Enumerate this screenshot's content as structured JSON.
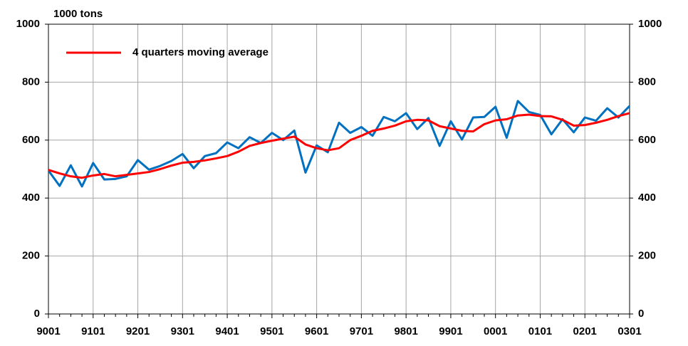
{
  "chart_data": {
    "type": "line",
    "y_axis_label": "1000 tons",
    "categories": [
      "9001",
      null,
      null,
      null,
      "9101",
      null,
      null,
      null,
      "9201",
      null,
      null,
      null,
      "9301",
      null,
      null,
      null,
      "9401",
      null,
      null,
      null,
      "9501",
      null,
      null,
      null,
      "9601",
      null,
      null,
      null,
      "9701",
      null,
      null,
      null,
      "9801",
      null,
      null,
      null,
      "9901",
      null,
      null,
      null,
      "0001",
      null,
      null,
      null,
      "0101",
      null,
      null,
      null,
      "0201",
      null,
      null,
      null,
      "0301"
    ],
    "series": [
      {
        "color": "#0070c0",
        "values": [
          495,
          442,
          513,
          440,
          521,
          464,
          466,
          475,
          531,
          498,
          511,
          528,
          552,
          503,
          545,
          555,
          592,
          572,
          610,
          590,
          625,
          600,
          633,
          488,
          582,
          558,
          660,
          625,
          645,
          615,
          680,
          665,
          693,
          638,
          676,
          580,
          665,
          602,
          678,
          680,
          715,
          608,
          735,
          697,
          687,
          620,
          672,
          627,
          678,
          667,
          710,
          678,
          718
        ]
      },
      {
        "name": "4 quarters moving average",
        "color": "#ff0000",
        "values": [
          497,
          485,
          475,
          470,
          478,
          483,
          475,
          480,
          485,
          490,
          500,
          512,
          522,
          525,
          530,
          537,
          545,
          560,
          580,
          590,
          598,
          605,
          612,
          585,
          572,
          565,
          572,
          600,
          615,
          632,
          640,
          650,
          665,
          670,
          668,
          648,
          640,
          632,
          630,
          655,
          668,
          672,
          685,
          688,
          683,
          682,
          670,
          650,
          652,
          660,
          670,
          683,
          693
        ]
      }
    ],
    "ylim": [
      0,
      1000
    ],
    "yticks": [
      0,
      200,
      400,
      600,
      800,
      1000
    ],
    "y2lim": [
      0,
      1000
    ],
    "y2ticks": [
      0,
      200,
      400,
      600,
      800,
      1000
    ],
    "grid": true,
    "legend": "upper left"
  }
}
